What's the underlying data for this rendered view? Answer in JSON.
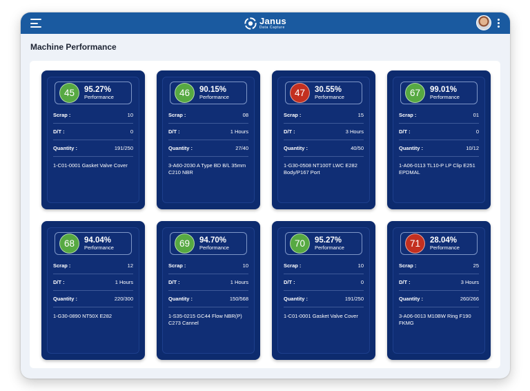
{
  "header": {
    "logo_name": "Janus",
    "logo_sub": "Data Capture"
  },
  "page_title": "Machine Performance",
  "labels": {
    "performance": "Performance",
    "scrap": "Scrap :",
    "dt": "D/T :",
    "quantity": "Quantity :"
  },
  "colors": {
    "green": "#57a942",
    "red": "#c33020",
    "card_bg": "#0d2b6e",
    "topbar": "#1a5aa0"
  },
  "machines": [
    {
      "id": "45",
      "status": "green",
      "performance": "95.27%",
      "scrap": "10",
      "dt": "0",
      "quantity": "191/250",
      "description": "1-C01-0001 Gasket Valve Cover"
    },
    {
      "id": "46",
      "status": "green",
      "performance": "90.15%",
      "scrap": "08",
      "dt": "1 Hours",
      "quantity": "27/40",
      "description": "3-A60-2030 A Type BD B/L 35mm C210 NBR"
    },
    {
      "id": "47",
      "status": "red",
      "performance": "30.55%",
      "scrap": "15",
      "dt": "3 Hours",
      "quantity": "40/50",
      "description": "1-G30-0508 NT100T LWC E282 Body/P167 Port"
    },
    {
      "id": "67",
      "status": "green",
      "performance": "99.01%",
      "scrap": "01",
      "dt": "0",
      "quantity": "10/12",
      "description": "1-A06-0113 TL10-P LP Clip E251 EPDMAL"
    },
    {
      "id": "68",
      "status": "green",
      "performance": "94.04%",
      "scrap": "12",
      "dt": "1 Hours",
      "quantity": "220/300",
      "description": "1-G30-0890 NT50X E282"
    },
    {
      "id": "69",
      "status": "green",
      "performance": "94.70%",
      "scrap": "10",
      "dt": "1 Hours",
      "quantity": "150/568",
      "description": "1-S35-0215 GC44 Flow NBR(P) C273 Cannel"
    },
    {
      "id": "70",
      "status": "green",
      "performance": "95.27%",
      "scrap": "10",
      "dt": "0",
      "quantity": "191/250",
      "description": "1-C01-0001 Gasket Valve Cover"
    },
    {
      "id": "71",
      "status": "red",
      "performance": "28.04%",
      "scrap": "25",
      "dt": "3 Hours",
      "quantity": "260/266",
      "description": "3-A06-0013 M10BW Ring F190 FKMG"
    }
  ]
}
